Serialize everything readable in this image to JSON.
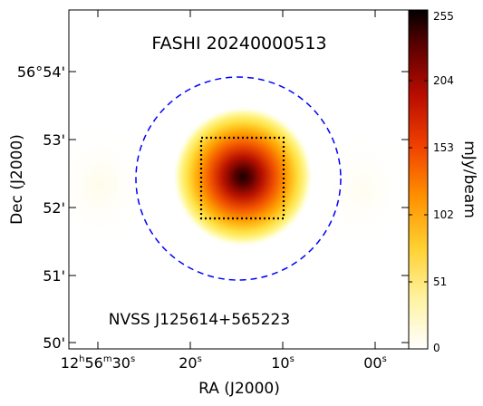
{
  "chart_data": {
    "type": "heatmap",
    "title": "FASHI 20240000513",
    "annotation": "NVSS J125614+565223",
    "xlabel": "RA (J2000)",
    "ylabel": "Dec (J2000)",
    "colorbar_label": "mJy/beam",
    "colormap": "gist_heat_r",
    "colorbar_range": [
      0,
      255
    ],
    "colorbar_ticks": [
      "0",
      "51",
      "102",
      "153",
      "204",
      "255"
    ],
    "x_ticks": [
      {
        "main": "12",
        "h": "h",
        "m_main": "56",
        "m": "m",
        "s_main": "30",
        "s": "s"
      },
      {
        "main": "20",
        "s": "s"
      },
      {
        "main": "10",
        "s": "s"
      },
      {
        "main": "00",
        "s": "s"
      }
    ],
    "y_ticks": [
      "50'",
      "51'",
      "52'",
      "53'",
      "56°54'"
    ],
    "source_peak": {
      "ra": "12h56m14s",
      "dec": "56°52.4'",
      "value": 255
    },
    "beam_circle_color": "#0000ff",
    "box_color": "#000000"
  }
}
